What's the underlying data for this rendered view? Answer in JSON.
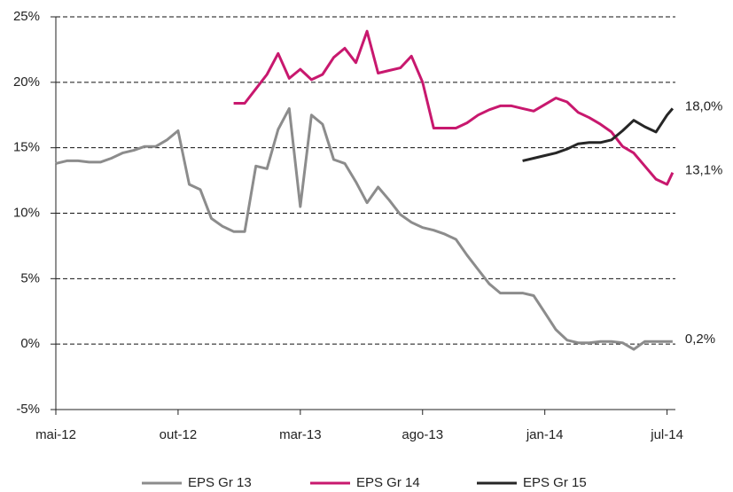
{
  "chart_data": {
    "type": "line",
    "x": [
      0,
      2,
      4,
      6,
      8,
      10,
      12,
      14,
      16,
      18,
      20,
      22,
      24,
      26,
      28,
      30,
      32,
      34,
      36,
      38,
      40,
      42,
      44,
      46,
      48,
      50,
      52,
      54,
      56,
      58,
      60,
      62,
      64,
      66,
      68,
      70,
      72,
      74,
      76,
      78,
      80,
      82,
      84,
      86,
      88,
      90,
      92,
      94,
      96,
      98,
      100,
      102,
      104,
      106,
      108,
      110,
      111
    ],
    "xlim": [
      0,
      111.5
    ],
    "xticks": [
      {
        "value": 0,
        "label": "mai-12"
      },
      {
        "value": 22,
        "label": "out-12"
      },
      {
        "value": 44,
        "label": "mar-13"
      },
      {
        "value": 66,
        "label": "ago-13"
      },
      {
        "value": 88,
        "label": "jan-14"
      },
      {
        "value": 110,
        "label": "jul-14"
      }
    ],
    "ylim": [
      -5,
      25
    ],
    "yticks": [
      {
        "value": -5,
        "label": "-5%"
      },
      {
        "value": 0,
        "label": "0%"
      },
      {
        "value": 5,
        "label": "5%"
      },
      {
        "value": 10,
        "label": "10%"
      },
      {
        "value": 15,
        "label": "15%"
      },
      {
        "value": 20,
        "label": "20%"
      },
      {
        "value": 25,
        "label": "25%"
      }
    ],
    "grid": true,
    "legend": "bottom",
    "series": [
      {
        "name": "EPS Gr 13",
        "color": "#8c8c8c",
        "values": [
          13.8,
          14.0,
          14.0,
          13.9,
          13.9,
          14.2,
          14.6,
          14.8,
          15.1,
          15.1,
          15.6,
          16.3,
          12.2,
          11.8,
          9.6,
          9.0,
          8.6,
          8.6,
          13.6,
          13.4,
          16.4,
          18.0,
          10.5,
          17.5,
          16.8,
          14.1,
          13.8,
          12.4,
          10.8,
          12.0,
          11.0,
          9.9,
          9.3,
          8.9,
          8.7,
          8.4,
          8.0,
          6.8,
          5.7,
          4.6,
          3.9,
          3.9,
          3.9,
          3.7,
          2.4,
          1.1,
          0.3,
          0.1,
          0.1,
          0.2,
          0.2,
          0.1,
          -0.4,
          0.2,
          0.2,
          0.2,
          0.2
        ],
        "value_labels": [
          null,
          null,
          null,
          null,
          null,
          null,
          null,
          null,
          null,
          null,
          null,
          null,
          null,
          null,
          null,
          null,
          null,
          null,
          null,
          null,
          null,
          null,
          null,
          null,
          null,
          null,
          null,
          null,
          null,
          null,
          null,
          null,
          null,
          null,
          null,
          null,
          null,
          null,
          null,
          null,
          null,
          null,
          null,
          null,
          null,
          null,
          null,
          null,
          null,
          null,
          null,
          null,
          null,
          null,
          null,
          null,
          "0,2%"
        ]
      },
      {
        "name": "EPS Gr 14",
        "color": "#c8186e",
        "values": [
          null,
          null,
          null,
          null,
          null,
          null,
          null,
          null,
          null,
          null,
          null,
          null,
          null,
          null,
          null,
          null,
          18.4,
          18.4,
          19.5,
          20.6,
          22.2,
          20.3,
          21.0,
          20.2,
          20.6,
          21.9,
          22.6,
          21.5,
          23.9,
          20.7,
          20.9,
          21.1,
          22.0,
          20.0,
          16.5,
          16.5,
          16.5,
          16.9,
          17.5,
          17.9,
          18.2,
          18.2,
          18.0,
          17.8,
          18.3,
          18.8,
          18.5,
          17.7,
          17.3,
          16.8,
          16.2,
          15.1,
          14.6,
          13.6,
          12.6,
          12.2,
          13.1
        ],
        "value_labels": [
          null,
          null,
          null,
          null,
          null,
          null,
          null,
          null,
          null,
          null,
          null,
          null,
          null,
          null,
          null,
          null,
          null,
          null,
          null,
          null,
          null,
          null,
          null,
          null,
          null,
          null,
          null,
          null,
          null,
          null,
          null,
          null,
          null,
          null,
          null,
          null,
          null,
          null,
          null,
          null,
          null,
          null,
          null,
          null,
          null,
          null,
          null,
          null,
          null,
          null,
          null,
          null,
          null,
          null,
          null,
          null,
          "13,1%"
        ]
      },
      {
        "name": "EPS Gr 15",
        "color": "#262626",
        "values": [
          null,
          null,
          null,
          null,
          null,
          null,
          null,
          null,
          null,
          null,
          null,
          null,
          null,
          null,
          null,
          null,
          null,
          null,
          null,
          null,
          null,
          null,
          null,
          null,
          null,
          null,
          null,
          null,
          null,
          null,
          null,
          null,
          null,
          null,
          null,
          null,
          null,
          null,
          null,
          null,
          null,
          null,
          14.0,
          14.2,
          14.4,
          14.6,
          14.9,
          15.3,
          15.4,
          15.4,
          15.6,
          16.3,
          17.1,
          16.6,
          16.2,
          17.5,
          18.0
        ],
        "value_labels": [
          null,
          null,
          null,
          null,
          null,
          null,
          null,
          null,
          null,
          null,
          null,
          null,
          null,
          null,
          null,
          null,
          null,
          null,
          null,
          null,
          null,
          null,
          null,
          null,
          null,
          null,
          null,
          null,
          null,
          null,
          null,
          null,
          null,
          null,
          null,
          null,
          null,
          null,
          null,
          null,
          null,
          null,
          null,
          null,
          null,
          null,
          null,
          null,
          null,
          null,
          null,
          null,
          null,
          null,
          null,
          null,
          "18,0%"
        ]
      }
    ]
  }
}
